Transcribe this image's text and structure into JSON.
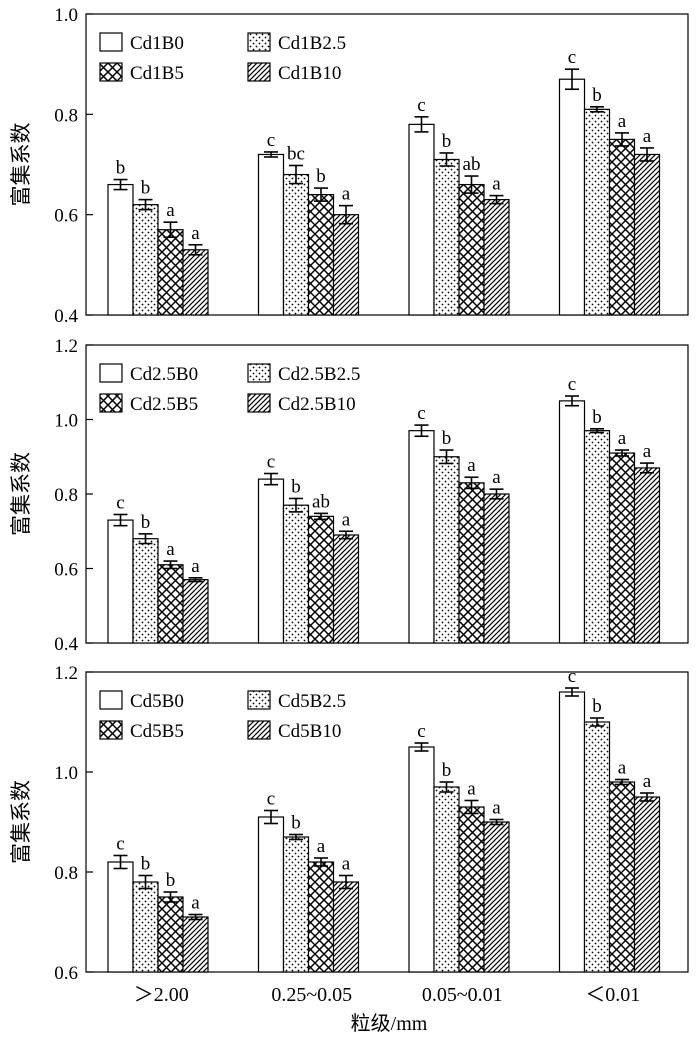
{
  "patterns": [
    "blank",
    "dots",
    "crosshatch",
    "diagonal"
  ],
  "x_axis": {
    "label": "粒级/mm",
    "categories": [
      "＞2.00",
      "0.25~0.05",
      "0.05~0.01",
      "＜0.01"
    ]
  },
  "chart_data": [
    {
      "type": "bar",
      "ylabel": "富集系数",
      "ylim": [
        0.4,
        1.0
      ],
      "yticks": [
        "0.4",
        "0.6",
        "0.8",
        "1.0"
      ],
      "yticks_values": [
        0.4,
        0.6,
        0.8,
        1.0
      ],
      "categories": [
        "＞2.00",
        "0.25~0.05",
        "0.05~0.01",
        "＜0.01"
      ],
      "series": [
        {
          "name": "Cd1B0",
          "values": [
            0.66,
            0.72,
            0.78,
            0.87
          ],
          "errors": [
            0.01,
            0.005,
            0.015,
            0.02
          ],
          "letters": [
            "b",
            "c",
            "c",
            "c"
          ]
        },
        {
          "name": "Cd1B2.5",
          "values": [
            0.62,
            0.68,
            0.71,
            0.81
          ],
          "errors": [
            0.01,
            0.018,
            0.013,
            0.005
          ],
          "letters": [
            "b",
            "bc",
            "b",
            "b"
          ]
        },
        {
          "name": "Cd1B5",
          "values": [
            0.57,
            0.64,
            0.66,
            0.75
          ],
          "errors": [
            0.015,
            0.013,
            0.017,
            0.013
          ],
          "letters": [
            "a",
            "b",
            "ab",
            "a"
          ]
        },
        {
          "name": "Cd1B10",
          "values": [
            0.53,
            0.6,
            0.63,
            0.72
          ],
          "errors": [
            0.01,
            0.018,
            0.008,
            0.013
          ],
          "letters": [
            "a",
            "a",
            "a",
            "a"
          ]
        }
      ]
    },
    {
      "type": "bar",
      "ylabel": "富集系数",
      "ylim": [
        0.4,
        1.2
      ],
      "yticks": [
        "0.4",
        "0.6",
        "0.8",
        "1.0",
        "1.2"
      ],
      "yticks_values": [
        0.4,
        0.6,
        0.8,
        1.0,
        1.2
      ],
      "categories": [
        "＞2.00",
        "0.25~0.05",
        "0.05~0.01",
        "＜0.01"
      ],
      "series": [
        {
          "name": "Cd2.5B0",
          "values": [
            0.73,
            0.84,
            0.97,
            1.05
          ],
          "errors": [
            0.015,
            0.015,
            0.015,
            0.013
          ],
          "letters": [
            "c",
            "c",
            "c",
            "c"
          ]
        },
        {
          "name": "Cd2.5B2.5",
          "values": [
            0.68,
            0.77,
            0.9,
            0.97
          ],
          "errors": [
            0.013,
            0.018,
            0.018,
            0.005
          ],
          "letters": [
            "b",
            "b",
            "b",
            "b"
          ]
        },
        {
          "name": "Cd2.5B5",
          "values": [
            0.61,
            0.74,
            0.83,
            0.91
          ],
          "errors": [
            0.01,
            0.008,
            0.015,
            0.008
          ],
          "letters": [
            "a",
            "ab",
            "a",
            "a"
          ]
        },
        {
          "name": "Cd2.5B10",
          "values": [
            0.57,
            0.69,
            0.8,
            0.87
          ],
          "errors": [
            0.005,
            0.01,
            0.013,
            0.013
          ],
          "letters": [
            "a",
            "a",
            "a",
            "a"
          ]
        }
      ]
    },
    {
      "type": "bar",
      "ylabel": "富集系数",
      "ylim": [
        0.6,
        1.2
      ],
      "yticks": [
        "0.6",
        "0.8",
        "1.0",
        "1.2"
      ],
      "yticks_values": [
        0.6,
        0.8,
        1.0,
        1.2
      ],
      "categories": [
        "＞2.00",
        "0.25~0.05",
        "0.05~0.01",
        "＜0.01"
      ],
      "series": [
        {
          "name": "Cd5B0",
          "values": [
            0.82,
            0.91,
            1.05,
            1.16
          ],
          "errors": [
            0.013,
            0.013,
            0.008,
            0.008
          ],
          "letters": [
            "c",
            "c",
            "c",
            "c"
          ]
        },
        {
          "name": "Cd5B2.5",
          "values": [
            0.78,
            0.87,
            0.97,
            1.1
          ],
          "errors": [
            0.013,
            0.005,
            0.01,
            0.008
          ],
          "letters": [
            "b",
            "b",
            "b",
            "b"
          ]
        },
        {
          "name": "Cd5B5",
          "values": [
            0.75,
            0.82,
            0.93,
            0.98
          ],
          "errors": [
            0.01,
            0.008,
            0.013,
            0.005
          ],
          "letters": [
            "b",
            "a",
            "a",
            "a"
          ]
        },
        {
          "name": "Cd5B10",
          "values": [
            0.71,
            0.78,
            0.9,
            0.95
          ],
          "errors": [
            0.005,
            0.013,
            0.005,
            0.008
          ],
          "letters": [
            "a",
            "a",
            "a",
            "a"
          ]
        }
      ]
    }
  ]
}
